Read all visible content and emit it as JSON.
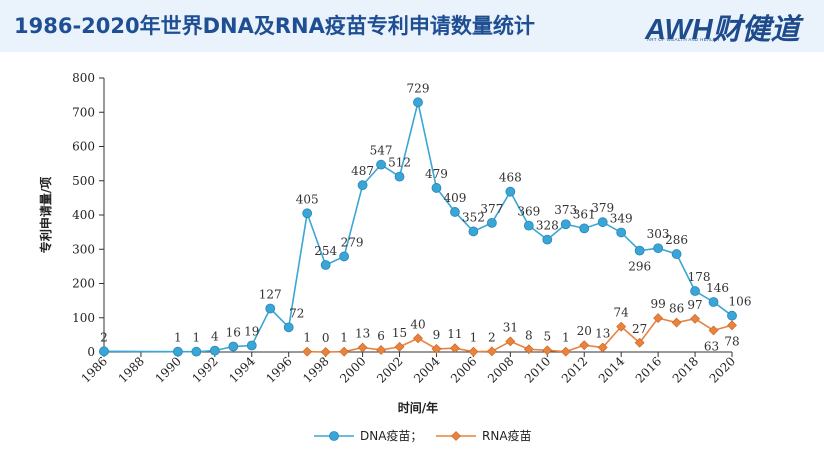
{
  "header": {
    "title": "1986-2020年世界DNA及RNA疫苗专利申请数量统计",
    "logo_text": "AWH财健道",
    "logo_subtext": "ART OF WEALTH AND HEALTH"
  },
  "colors": {
    "header_bg": "#eaf2fb",
    "title": "#1f4f93",
    "dna": "#3aa6d6",
    "rna": "#e8823f",
    "logo": "#1e4b8c",
    "logo_check": "#f0a020"
  },
  "chart_data": {
    "type": "line",
    "xlabel": "时间/年",
    "ylabel": "专利申请量/项",
    "ylim": [
      0,
      800
    ],
    "yticks": [
      0,
      100,
      200,
      300,
      400,
      500,
      600,
      700,
      800
    ],
    "xlim": [
      1986,
      2020
    ],
    "xticks": [
      1986,
      1988,
      1990,
      1992,
      1994,
      1996,
      1998,
      2000,
      2002,
      2004,
      2006,
      2008,
      2010,
      2012,
      2014,
      2016,
      2018,
      2020
    ],
    "grid": false,
    "legend": "bottom",
    "series": [
      {
        "name": "DNA疫苗；",
        "x": [
          1986,
          1990,
          1991,
          1992,
          1993,
          1994,
          1995,
          1996,
          1997,
          1998,
          1999,
          2000,
          2001,
          2002,
          2003,
          2004,
          2005,
          2006,
          2007,
          2008,
          2009,
          2010,
          2011,
          2012,
          2013,
          2014,
          2015,
          2016,
          2017,
          2018,
          2019,
          2020
        ],
        "values": [
          2,
          1,
          1,
          4,
          16,
          19,
          127,
          72,
          405,
          254,
          279,
          487,
          547,
          512,
          729,
          479,
          409,
          352,
          377,
          468,
          369,
          328,
          373,
          361,
          379,
          349,
          296,
          303,
          286,
          178,
          146,
          106
        ]
      },
      {
        "name": "RNA疫苗",
        "x": [
          1997,
          1998,
          1999,
          2000,
          2001,
          2002,
          2003,
          2004,
          2005,
          2006,
          2007,
          2008,
          2009,
          2010,
          2011,
          2012,
          2013,
          2014,
          2015,
          2016,
          2017,
          2018,
          2019,
          2020
        ],
        "values": [
          1,
          0,
          1,
          13,
          6,
          15,
          40,
          9,
          11,
          1,
          2,
          31,
          8,
          5,
          1,
          20,
          13,
          74,
          27,
          99,
          86,
          97,
          63,
          78
        ]
      }
    ]
  }
}
